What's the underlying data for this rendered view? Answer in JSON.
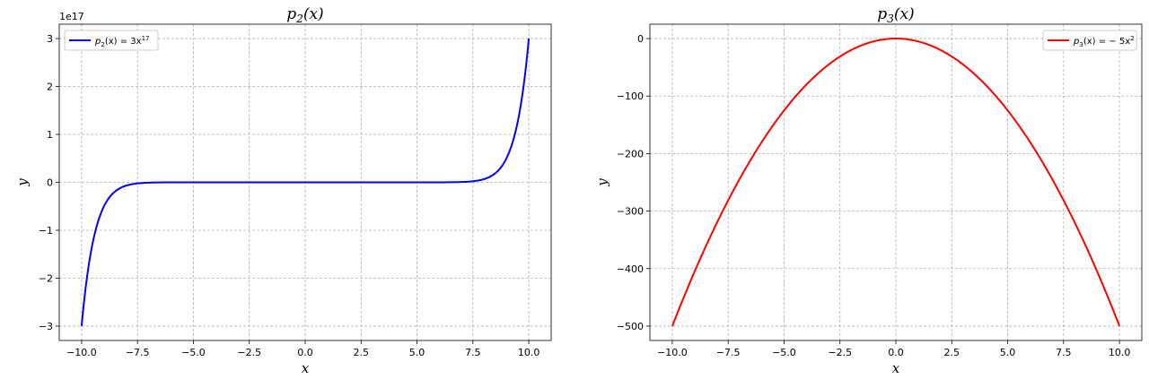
{
  "chart_data": [
    {
      "type": "line",
      "title_base": "p",
      "title_sub": "2",
      "title_tail": "(x)",
      "xlabel": "x",
      "ylabel": "y",
      "xlim": [
        -11,
        11
      ],
      "ylim": [
        -3.3e+17,
        3.3e+17
      ],
      "x_ticks": [
        -10,
        -7.5,
        -5,
        -2.5,
        0,
        2.5,
        5,
        7.5,
        10
      ],
      "x_tick_labels": [
        "−10.0",
        "−7.5",
        "−5.0",
        "−2.5",
        "0.0",
        "2.5",
        "5.0",
        "7.5",
        "10.0"
      ],
      "y_ticks": [
        -3e+17,
        -2e+17,
        -1e+17,
        0,
        1e+17,
        2e+17,
        3e+17
      ],
      "y_tick_labels": [
        "−3",
        "−2",
        "−1",
        "0",
        "1",
        "2",
        "3"
      ],
      "y_offset_label": "1e17",
      "grid": true,
      "legend_position": "upper-left",
      "series": [
        {
          "legend_prefix": "p",
          "legend_sub": "2",
          "legend_mid": "(x) = 3x",
          "legend_sup": "17",
          "color": "#0000ff",
          "coef": 3,
          "power": 17,
          "x_range": [
            -10,
            10
          ]
        }
      ]
    },
    {
      "type": "line",
      "title_base": "p",
      "title_sub": "3",
      "title_tail": "(x)",
      "xlabel": "x",
      "ylabel": "y",
      "xlim": [
        -11,
        11
      ],
      "ylim": [
        -525,
        25
      ],
      "x_ticks": [
        -10,
        -7.5,
        -5,
        -2.5,
        0,
        2.5,
        5,
        7.5,
        10
      ],
      "x_tick_labels": [
        "−10.0",
        "−7.5",
        "−5.0",
        "−2.5",
        "0.0",
        "2.5",
        "5.0",
        "7.5",
        "10.0"
      ],
      "y_ticks": [
        0,
        -100,
        -200,
        -300,
        -400,
        -500
      ],
      "y_tick_labels": [
        "0",
        "−100",
        "−200",
        "−300",
        "−400",
        "−500"
      ],
      "y_offset_label": "",
      "grid": true,
      "legend_position": "upper-right",
      "series": [
        {
          "legend_prefix": "p",
          "legend_sub": "3",
          "legend_mid": "(x) = − 5x",
          "legend_sup": "2",
          "color": "#ff0000",
          "coef": -5,
          "power": 2,
          "x_range": [
            -10,
            10
          ]
        }
      ]
    }
  ]
}
